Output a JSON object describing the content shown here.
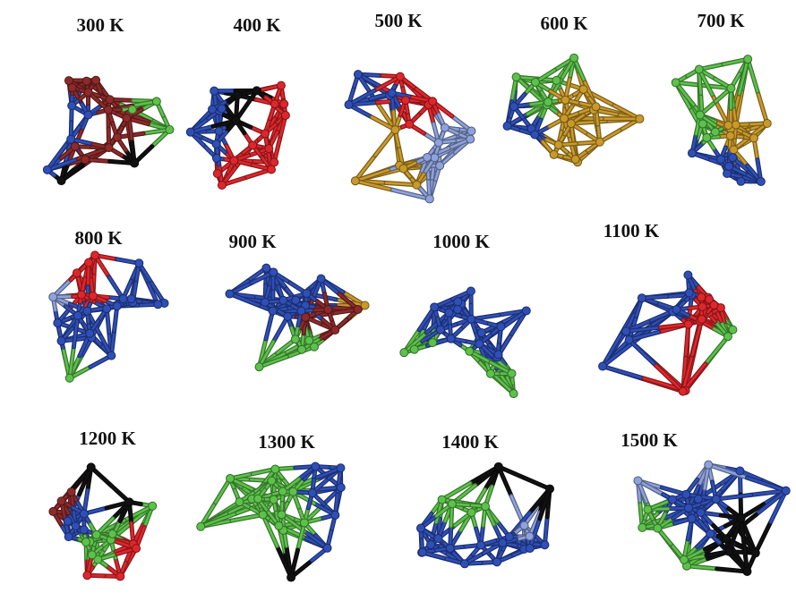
{
  "panels": [
    {
      "label": "300 K"
    },
    {
      "label": "400 K"
    },
    {
      "label": "500 K"
    },
    {
      "label": "600 K"
    },
    {
      "label": "700 K"
    },
    {
      "label": "800 K"
    },
    {
      "label": "900 K"
    },
    {
      "label": "1000 K"
    },
    {
      "label": "1100 K"
    },
    {
      "label": "1200 K"
    },
    {
      "label": "1300 K"
    },
    {
      "label": "1400 K"
    },
    {
      "label": "1500 K"
    }
  ]
}
